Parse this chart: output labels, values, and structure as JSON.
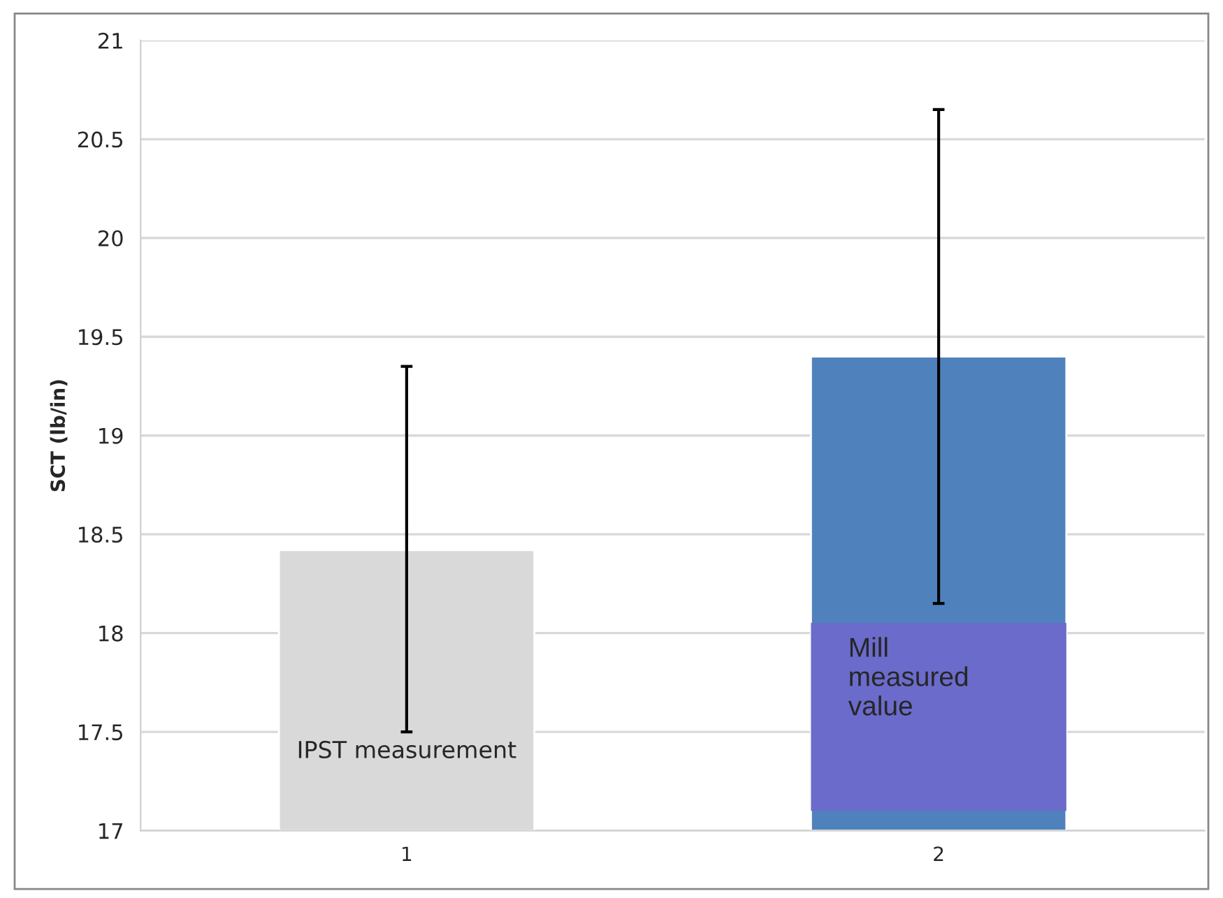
{
  "chart_data": {
    "type": "bar",
    "ylabel": "SCT (lb/in)",
    "categories": [
      "1",
      "2"
    ],
    "values": [
      18.42,
      19.4
    ],
    "colors": [
      "#d9d9d9",
      "#4f81bd"
    ],
    "errors": [
      [
        17.5,
        19.35
      ],
      [
        18.15,
        20.65
      ]
    ],
    "ylim": [
      17,
      21
    ],
    "yticks": [
      17,
      17.5,
      18,
      18.5,
      19,
      19.5,
      20,
      20.5,
      21
    ],
    "grid": "y",
    "annotations": [
      "IPST measurement",
      "Mill\nmeasured\nvalue"
    ]
  }
}
